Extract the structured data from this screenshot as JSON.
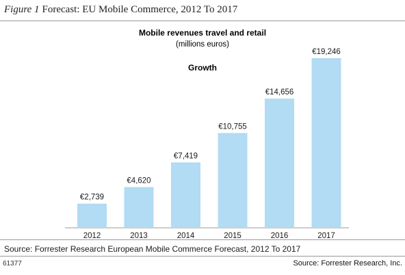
{
  "figure": {
    "number": "Figure 1",
    "title": "Forecast: EU Mobile Commerce, 2012 To 2017",
    "id": "61377",
    "credit": "Source: Forrester Research, Inc."
  },
  "source_note": "Source: Forrester Research European Mobile Commerce Forecast, 2012 To 2017",
  "chart_data": {
    "type": "bar",
    "title": "Mobile revenues travel and retail",
    "subtitle": "(millions euros)",
    "annotation": "Growth",
    "categories": [
      "2012",
      "2013",
      "2014",
      "2015",
      "2016",
      "2017"
    ],
    "values": [
      2739,
      4620,
      7419,
      10755,
      14656,
      19246
    ],
    "value_labels": [
      "€2,739",
      "€4,620",
      "€7,419",
      "€10,755",
      "€14,656",
      "€19,246"
    ],
    "bar_color": "#b2dbf4",
    "ylim": [
      0,
      19246
    ],
    "grid": false,
    "legend": "none"
  }
}
